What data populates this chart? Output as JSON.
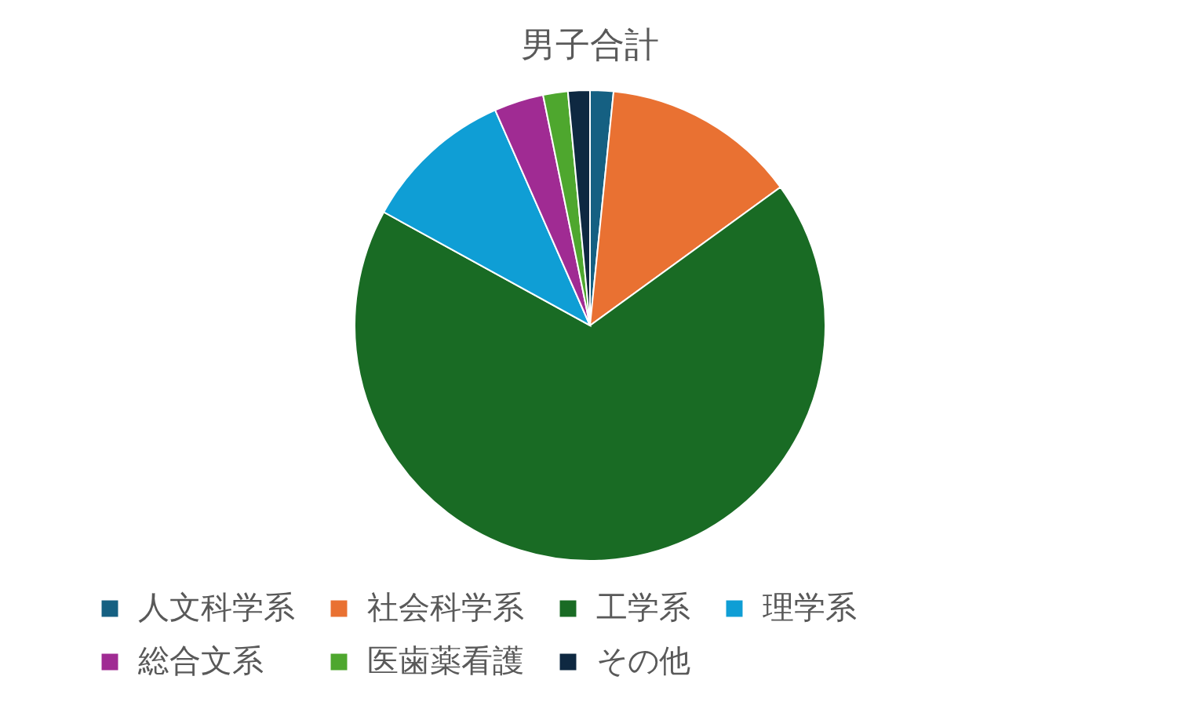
{
  "chart_data": {
    "type": "pie",
    "title": "男子合計",
    "categories": [
      "人文科学系",
      "社会科学系",
      "工学系",
      "理学系",
      "総合文系",
      "医歯薬看護",
      "その他"
    ],
    "values": [
      1.6,
      13.4,
      68.0,
      10.4,
      3.4,
      1.7,
      1.5
    ],
    "colors": [
      "#156082",
      "#e97132",
      "#196b24",
      "#0f9ed5",
      "#a02b93",
      "#4ea72e",
      "#0e2841"
    ],
    "legend": "bottom"
  }
}
